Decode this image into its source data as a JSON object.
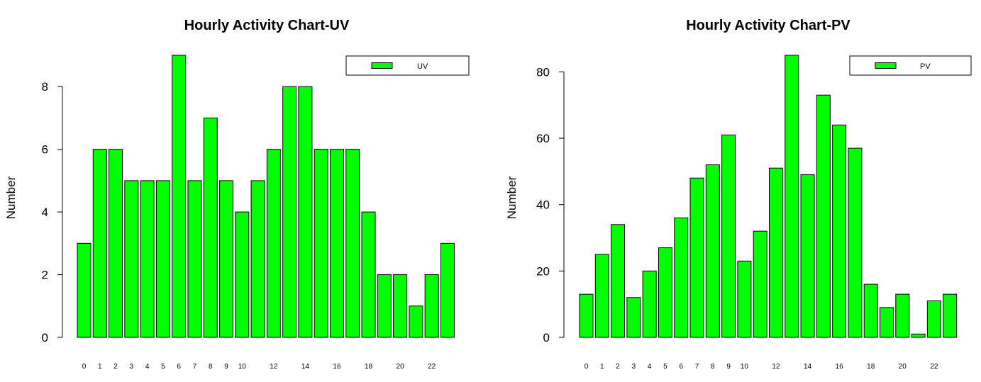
{
  "chart_data": [
    {
      "type": "bar",
      "title": "Hourly Activity Chart-UV",
      "xlabel": "",
      "ylabel": "Number",
      "categories": [
        "0",
        "1",
        "2",
        "3",
        "4",
        "5",
        "6",
        "7",
        "8",
        "9",
        "10",
        "11",
        "12",
        "13",
        "14",
        "15",
        "16",
        "17",
        "18",
        "19",
        "20",
        "21",
        "22",
        "23"
      ],
      "xtick_labels": [
        "0",
        "1",
        "2",
        "3",
        "4",
        "5",
        "6",
        "7",
        "8",
        "9",
        "10",
        "",
        "12",
        "",
        "14",
        "",
        "16",
        "",
        "18",
        "",
        "20",
        "",
        "22",
        ""
      ],
      "series": [
        {
          "name": "UV",
          "color": "#00ff00",
          "values": [
            3,
            6,
            6,
            5,
            5,
            5,
            9,
            5,
            7,
            5,
            4,
            5,
            6,
            8,
            8,
            6,
            6,
            6,
            4,
            2,
            2,
            1,
            2,
            3
          ]
        }
      ],
      "ylim": [
        0,
        9
      ],
      "yticks": [
        0,
        2,
        4,
        6,
        8
      ],
      "grid": false,
      "legend": "top-right"
    },
    {
      "type": "bar",
      "title": "Hourly Activity Chart-PV",
      "xlabel": "",
      "ylabel": "Number",
      "categories": [
        "0",
        "1",
        "2",
        "3",
        "4",
        "5",
        "6",
        "7",
        "8",
        "9",
        "10",
        "11",
        "12",
        "13",
        "14",
        "15",
        "16",
        "17",
        "18",
        "19",
        "20",
        "21",
        "22",
        "23"
      ],
      "xtick_labels": [
        "0",
        "1",
        "2",
        "3",
        "4",
        "5",
        "6",
        "7",
        "8",
        "9",
        "10",
        "",
        "12",
        "",
        "14",
        "",
        "16",
        "",
        "18",
        "",
        "20",
        "",
        "22",
        ""
      ],
      "series": [
        {
          "name": "PV",
          "color": "#00ff00",
          "values": [
            13,
            25,
            34,
            12,
            20,
            27,
            36,
            48,
            52,
            61,
            23,
            32,
            51,
            85,
            49,
            73,
            64,
            57,
            16,
            9,
            13,
            1,
            11,
            13
          ]
        }
      ],
      "ylim": [
        0,
        85
      ],
      "yticks": [
        0,
        20,
        40,
        60,
        80
      ],
      "grid": false,
      "legend": "top-right"
    }
  ]
}
